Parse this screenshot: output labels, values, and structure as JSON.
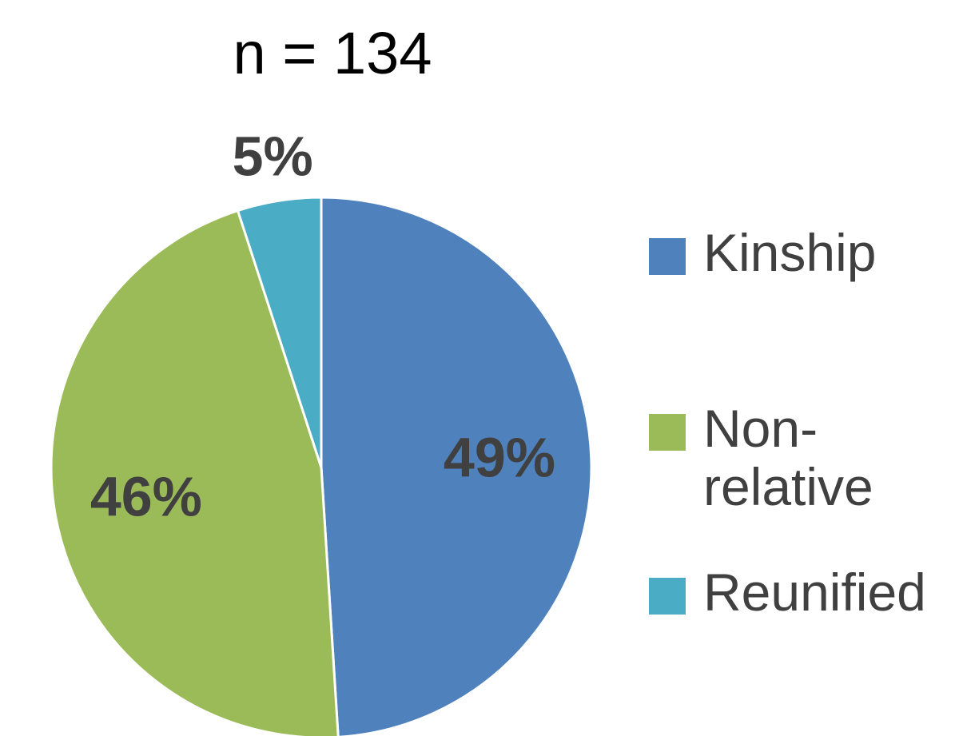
{
  "chart_data": {
    "type": "pie",
    "subtitle": "n = 134",
    "categories": [
      "Kinship",
      "Non-relative",
      "Reunified"
    ],
    "values": [
      49,
      46,
      5
    ],
    "value_labels": [
      "49%",
      "46%",
      "5%"
    ],
    "colors": [
      "#4f81bd",
      "#9bbb59",
      "#4bacc6"
    ],
    "legend": "right"
  }
}
